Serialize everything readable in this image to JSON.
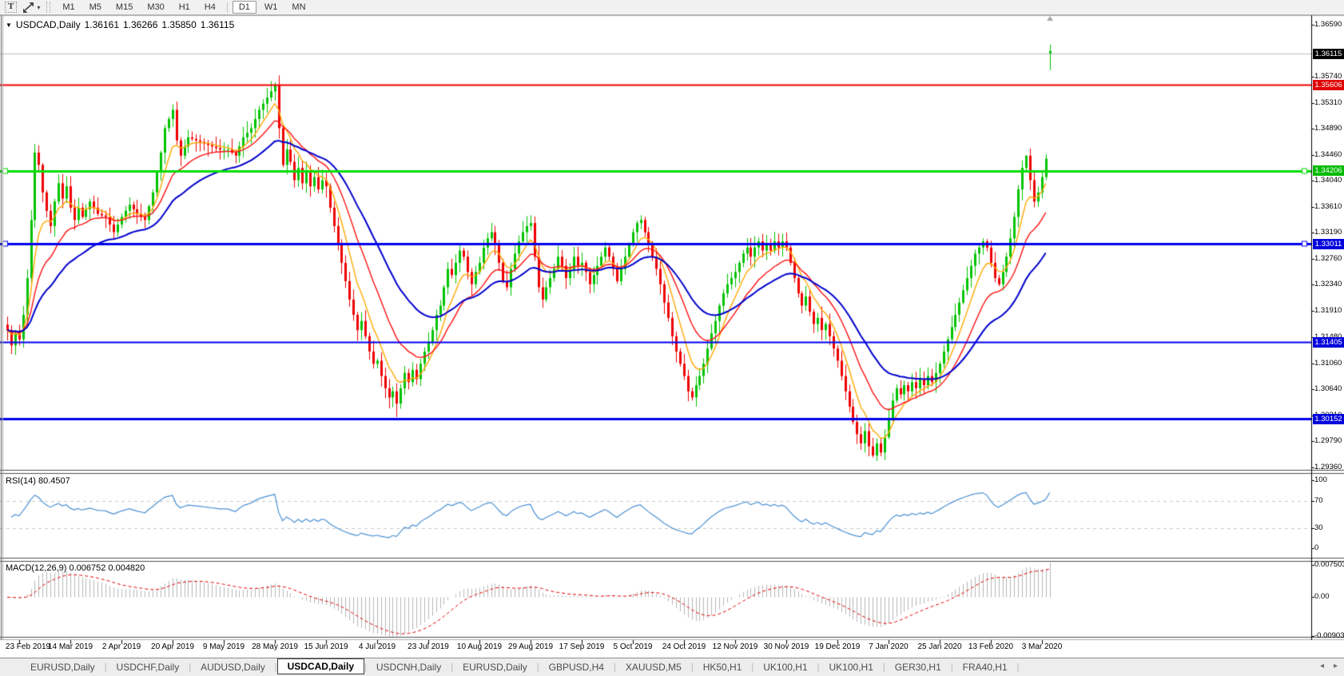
{
  "toolbar": {
    "text_tool_glyph": "T",
    "dropdown_glyph": "▾",
    "timeframes": [
      "M1",
      "M5",
      "M15",
      "M30",
      "H1",
      "H4",
      "D1",
      "W1",
      "MN"
    ],
    "active_timeframe": "D1"
  },
  "chart_header": {
    "dropdown_glyph": "▼",
    "symbol": "USDCAD,Daily",
    "open": "1.36161",
    "high": "1.36266",
    "low": "1.35850",
    "close": "1.36115"
  },
  "price_axis": {
    "ticks": [
      "1.36590",
      "1.35740",
      "1.35310",
      "1.34890",
      "1.34460",
      "1.34040",
      "1.33610",
      "1.33190",
      "1.32760",
      "1.32340",
      "1.31910",
      "1.31480",
      "1.31060",
      "1.30640",
      "1.30210",
      "1.29790",
      "1.29360"
    ]
  },
  "badges": [
    {
      "label": "1.36115",
      "value": 1.36115,
      "color": "#000000"
    },
    {
      "label": "1.35606",
      "value": 1.35606,
      "color": "#e00000"
    },
    {
      "label": "1.34206",
      "value": 1.34206,
      "color": "#00bb00"
    },
    {
      "label": "1.33011",
      "value": 1.33011,
      "color": "#0000dd"
    },
    {
      "label": "1.31405",
      "value": 1.31405,
      "color": "#0000dd"
    },
    {
      "label": "1.30152",
      "value": 1.30152,
      "color": "#0000dd"
    }
  ],
  "levels": [
    {
      "value": 1.35606,
      "color": "#ee0000",
      "width": 2,
      "handle": false
    },
    {
      "value": 1.34206,
      "color": "#00dd00",
      "width": 3,
      "handle": true
    },
    {
      "value": 1.33011,
      "color": "#0000ee",
      "width": 3,
      "handle": true
    },
    {
      "value": 1.31405,
      "color": "#0000ee",
      "width": 2,
      "handle": false
    },
    {
      "value": 1.30152,
      "color": "#0000ee",
      "width": 3,
      "handle": false
    }
  ],
  "current_price_line": {
    "value": 1.36115,
    "color": "#bcbcbc"
  },
  "marker": {
    "shape": "up-arrow",
    "color": "#a8a8a8"
  },
  "date_axis": [
    "23 Feb 2019",
    "14 Mar 2019",
    "2 Apr 2019",
    "20 Apr 2019",
    "9 May 2019",
    "28 May 2019",
    "15 Jun 2019",
    "4 Jul 2019",
    "23 Jul 2019",
    "10 Aug 2019",
    "29 Aug 2019",
    "17 Sep 2019",
    "5 Oct 2019",
    "24 Oct 2019",
    "12 Nov 2019",
    "30 Nov 2019",
    "19 Dec 2019",
    "7 Jan 2020",
    "25 Jan 2020",
    "13 Feb 2020",
    "3 Mar 2020"
  ],
  "rsi": {
    "label": "RSI(14) 80.4507",
    "ticks": [
      "100",
      "70",
      "30",
      "0"
    ],
    "guides": [
      70,
      30
    ],
    "line_color": "#4a90d2"
  },
  "macd": {
    "label": "MACD(12,26,9) 0.006752 0.004820",
    "ticks": [
      "0.007503",
      "0.00",
      "-0.00903"
    ],
    "histogram_color": "#b6b6b6",
    "signal_color": "#e00000"
  },
  "moving_averages": [
    {
      "name": "fast",
      "period": 7,
      "color": "#ffa800"
    },
    {
      "name": "medium",
      "period": 16,
      "color": "#ff1010"
    },
    {
      "name": "slow",
      "period": 32,
      "color": "#0000cc"
    }
  ],
  "candles": {
    "bull_color": "#00c300",
    "bear_color": "#ee0000",
    "last_bar": {
      "open": 1.36161,
      "high": 1.36266,
      "low": 1.3585,
      "close": 1.36115
    },
    "wick_overrides": {
      "68": {
        "high": 1.3565
      },
      "99": {
        "low": 1.3018
      },
      "220": {
        "low": 1.2952
      },
      "259": {
        "high": 1.3446
      }
    },
    "waypoints": [
      [
        0,
        1.316
      ],
      [
        1,
        1.3135
      ],
      [
        2,
        1.3155
      ],
      [
        3,
        1.3145
      ],
      [
        4,
        1.3185
      ],
      [
        5,
        1.3245
      ],
      [
        6,
        1.334
      ],
      [
        7,
        1.345
      ],
      [
        8,
        1.343
      ],
      [
        9,
        1.3385
      ],
      [
        10,
        1.3355
      ],
      [
        11,
        1.333
      ],
      [
        12,
        1.337
      ],
      [
        13,
        1.34
      ],
      [
        14,
        1.3375
      ],
      [
        15,
        1.3395
      ],
      [
        16,
        1.336
      ],
      [
        17,
        1.334
      ],
      [
        18,
        1.336
      ],
      [
        19,
        1.3345
      ],
      [
        21,
        1.337
      ],
      [
        23,
        1.335
      ],
      [
        25,
        1.3345
      ],
      [
        27,
        1.332
      ],
      [
        29,
        1.3345
      ],
      [
        31,
        1.3365
      ],
      [
        33,
        1.335
      ],
      [
        35,
        1.334
      ],
      [
        37,
        1.3385
      ],
      [
        39,
        1.345
      ],
      [
        40,
        1.349
      ],
      [
        42,
        1.352
      ],
      [
        43,
        1.347
      ],
      [
        44,
        1.3445
      ],
      [
        46,
        1.3475
      ],
      [
        48,
        1.347
      ],
      [
        50,
        1.3465
      ],
      [
        52,
        1.346
      ],
      [
        54,
        1.3455
      ],
      [
        56,
        1.3455
      ],
      [
        58,
        1.3445
      ],
      [
        60,
        1.3475
      ],
      [
        62,
        1.349
      ],
      [
        64,
        1.352
      ],
      [
        66,
        1.354
      ],
      [
        68,
        1.356
      ],
      [
        69,
        1.349
      ],
      [
        70,
        1.343
      ],
      [
        71,
        1.3455
      ],
      [
        72,
        1.3435
      ],
      [
        73,
        1.3405
      ],
      [
        74,
        1.3425
      ],
      [
        75,
        1.34
      ],
      [
        76,
        1.342
      ],
      [
        77,
        1.3395
      ],
      [
        78,
        1.341
      ],
      [
        79,
        1.339
      ],
      [
        80,
        1.3405
      ],
      [
        81,
        1.3395
      ],
      [
        82,
        1.336
      ],
      [
        83,
        1.333
      ],
      [
        84,
        1.33
      ],
      [
        85,
        1.327
      ],
      [
        86,
        1.324
      ],
      [
        87,
        1.321
      ],
      [
        88,
        1.3185
      ],
      [
        89,
        1.316
      ],
      [
        90,
        1.3175
      ],
      [
        91,
        1.315
      ],
      [
        92,
        1.3125
      ],
      [
        93,
        1.3105
      ],
      [
        94,
        1.311
      ],
      [
        95,
        1.3085
      ],
      [
        96,
        1.3065
      ],
      [
        97,
        1.305
      ],
      [
        98,
        1.306
      ],
      [
        99,
        1.304
      ],
      [
        100,
        1.3065
      ],
      [
        101,
        1.309
      ],
      [
        102,
        1.3075
      ],
      [
        103,
        1.3095
      ],
      [
        104,
        1.308
      ],
      [
        105,
        1.3105
      ],
      [
        106,
        1.3125
      ],
      [
        107,
        1.314
      ],
      [
        108,
        1.316
      ],
      [
        109,
        1.3185
      ],
      [
        110,
        1.32
      ],
      [
        111,
        1.323
      ],
      [
        112,
        1.326
      ],
      [
        113,
        1.325
      ],
      [
        114,
        1.327
      ],
      [
        115,
        1.329
      ],
      [
        116,
        1.328
      ],
      [
        117,
        1.3255
      ],
      [
        118,
        1.3235
      ],
      [
        119,
        1.3255
      ],
      [
        120,
        1.327
      ],
      [
        121,
        1.3295
      ],
      [
        122,
        1.331
      ],
      [
        123,
        1.332
      ],
      [
        124,
        1.33
      ],
      [
        125,
        1.327
      ],
      [
        126,
        1.324
      ],
      [
        127,
        1.323
      ],
      [
        128,
        1.326
      ],
      [
        129,
        1.3285
      ],
      [
        130,
        1.3305
      ],
      [
        131,
        1.332
      ],
      [
        132,
        1.333
      ],
      [
        133,
        1.3335
      ],
      [
        134,
        1.328
      ],
      [
        135,
        1.323
      ],
      [
        136,
        1.321
      ],
      [
        137,
        1.323
      ],
      [
        138,
        1.3245
      ],
      [
        139,
        1.326
      ],
      [
        140,
        1.328
      ],
      [
        141,
        1.3265
      ],
      [
        142,
        1.3245
      ],
      [
        143,
        1.326
      ],
      [
        144,
        1.328
      ],
      [
        145,
        1.3265
      ],
      [
        146,
        1.327
      ],
      [
        147,
        1.3255
      ],
      [
        148,
        1.3235
      ],
      [
        149,
        1.325
      ],
      [
        150,
        1.3265
      ],
      [
        151,
        1.328
      ],
      [
        152,
        1.3295
      ],
      [
        153,
        1.328
      ],
      [
        154,
        1.326
      ],
      [
        155,
        1.324
      ],
      [
        156,
        1.326
      ],
      [
        157,
        1.328
      ],
      [
        158,
        1.33
      ],
      [
        159,
        1.332
      ],
      [
        160,
        1.3335
      ],
      [
        161,
        1.334
      ],
      [
        162,
        1.332
      ],
      [
        163,
        1.33
      ],
      [
        164,
        1.328
      ],
      [
        165,
        1.326
      ],
      [
        166,
        1.3235
      ],
      [
        167,
        1.3205
      ],
      [
        168,
        1.318
      ],
      [
        169,
        1.315
      ],
      [
        170,
        1.3125
      ],
      [
        171,
        1.3105
      ],
      [
        172,
        1.3085
      ],
      [
        173,
        1.306
      ],
      [
        174,
        1.305
      ],
      [
        175,
        1.307
      ],
      [
        176,
        1.3085
      ],
      [
        177,
        1.3105
      ],
      [
        178,
        1.313
      ],
      [
        179,
        1.3155
      ],
      [
        180,
        1.3175
      ],
      [
        181,
        1.32
      ],
      [
        182,
        1.322
      ],
      [
        183,
        1.3235
      ],
      [
        184,
        1.3245
      ],
      [
        185,
        1.3255
      ],
      [
        186,
        1.327
      ],
      [
        187,
        1.3285
      ],
      [
        188,
        1.3295
      ],
      [
        189,
        1.328
      ],
      [
        190,
        1.3295
      ],
      [
        191,
        1.3305
      ],
      [
        192,
        1.329
      ],
      [
        193,
        1.33
      ],
      [
        194,
        1.329
      ],
      [
        195,
        1.3305
      ],
      [
        196,
        1.3295
      ],
      [
        197,
        1.3305
      ],
      [
        198,
        1.3295
      ],
      [
        199,
        1.327
      ],
      [
        200,
        1.3245
      ],
      [
        201,
        1.322
      ],
      [
        202,
        1.32
      ],
      [
        203,
        1.3215
      ],
      [
        204,
        1.319
      ],
      [
        205,
        1.317
      ],
      [
        206,
        1.318
      ],
      [
        207,
        1.316
      ],
      [
        208,
        1.317
      ],
      [
        209,
        1.315
      ],
      [
        210,
        1.313
      ],
      [
        211,
        1.311
      ],
      [
        212,
        1.3085
      ],
      [
        213,
        1.306
      ],
      [
        214,
        1.3035
      ],
      [
        215,
        1.301
      ],
      [
        216,
        1.299
      ],
      [
        217,
        1.2975
      ],
      [
        218,
        1.2995
      ],
      [
        219,
        1.297
      ],
      [
        220,
        1.2955
      ],
      [
        221,
        1.2975
      ],
      [
        222,
        1.296
      ],
      [
        223,
        1.2985
      ],
      [
        224,
        1.3015
      ],
      [
        225,
        1.3045
      ],
      [
        226,
        1.3065
      ],
      [
        227,
        1.3055
      ],
      [
        228,
        1.307
      ],
      [
        229,
        1.306
      ],
      [
        230,
        1.3075
      ],
      [
        231,
        1.3065
      ],
      [
        232,
        1.308
      ],
      [
        233,
        1.307
      ],
      [
        234,
        1.3085
      ],
      [
        235,
        1.3075
      ],
      [
        236,
        1.309
      ],
      [
        237,
        1.3105
      ],
      [
        238,
        1.3125
      ],
      [
        239,
        1.3145
      ],
      [
        240,
        1.3165
      ],
      [
        241,
        1.3185
      ],
      [
        242,
        1.3205
      ],
      [
        243,
        1.3225
      ],
      [
        244,
        1.3245
      ],
      [
        245,
        1.3265
      ],
      [
        246,
        1.3285
      ],
      [
        247,
        1.3295
      ],
      [
        248,
        1.3305
      ],
      [
        249,
        1.3295
      ],
      [
        250,
        1.327
      ],
      [
        251,
        1.3245
      ],
      [
        252,
        1.3235
      ],
      [
        253,
        1.3255
      ],
      [
        254,
        1.328
      ],
      [
        255,
        1.331
      ],
      [
        256,
        1.3345
      ],
      [
        257,
        1.339
      ],
      [
        258,
        1.3425
      ],
      [
        259,
        1.3445
      ],
      [
        260,
        1.3405
      ],
      [
        261,
        1.337
      ],
      [
        262,
        1.3385
      ],
      [
        263,
        1.341
      ],
      [
        264,
        1.344
      ]
    ]
  },
  "tabs": {
    "items": [
      "EURUSD,Daily",
      "USDCHF,Daily",
      "AUDUSD,Daily",
      "USDCAD,Daily",
      "USDCNH,Daily",
      "EURUSD,Daily",
      "GBPUSD,H4",
      "XAUUSD,M5",
      "HK50,H1",
      "UK100,H1",
      "UK100,H1",
      "GER30,H1",
      "FRA40,H1"
    ],
    "active_index": 3,
    "scroll_left_glyph": "◂",
    "scroll_right_glyph": "▸"
  }
}
